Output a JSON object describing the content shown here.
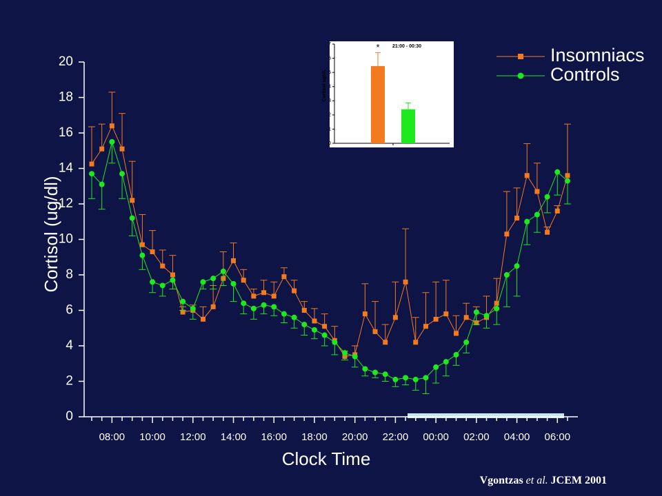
{
  "chart_data": [
    {
      "type": "line",
      "xlabel": "Clock Time",
      "ylabel": "Cortisol (ug/dl)",
      "categories": [
        null,
        null,
        "08:00",
        null,
        null,
        null,
        "10:00",
        null,
        null,
        null,
        "12:00",
        null,
        null,
        null,
        "14:00",
        null,
        null,
        null,
        "16:00",
        null,
        null,
        null,
        "18:00",
        null,
        null,
        null,
        "20:00",
        null,
        null,
        null,
        "22:00",
        null,
        null,
        null,
        "00:00",
        null,
        null,
        null,
        "02:00",
        null,
        null,
        null,
        "04:00",
        null,
        null,
        null,
        "06:00",
        null
      ],
      "ylim": [
        0,
        20
      ],
      "yticks": [
        0,
        2,
        4,
        6,
        8,
        10,
        12,
        14,
        16,
        18,
        20
      ],
      "legend": "upper right",
      "series": [
        {
          "name": "Insomniacs",
          "color": "#f47a20",
          "marker": "square",
          "error_direction": "up",
          "values": [
            14.25,
            15.1,
            16.4,
            15.1,
            12.2,
            9.7,
            9.3,
            8.5,
            8.0,
            5.9,
            6.0,
            5.5,
            6.2,
            7.8,
            8.8,
            7.7,
            6.8,
            7.0,
            6.8,
            7.9,
            7.1,
            6.0,
            5.4,
            5.1,
            4.3,
            3.4,
            3.5,
            5.8,
            4.8,
            4.2,
            5.6,
            7.6,
            4.2,
            5.1,
            5.5,
            5.8,
            4.7,
            5.6,
            5.3,
            5.6,
            6.4,
            10.3,
            11.2,
            13.6,
            12.7,
            10.4,
            11.6,
            13.6
          ],
          "errors": [
            2.1,
            1.4,
            1.9,
            2.0,
            2.2,
            1.7,
            1.2,
            0.9,
            1.1,
            0.3,
            0.3,
            0.7,
            1.2,
            1.5,
            1.0,
            0.6,
            0.4,
            0.7,
            0.8,
            0.5,
            0.6,
            0.5,
            0.7,
            0.7,
            0.8,
            0.3,
            0.5,
            1.7,
            1.7,
            1.0,
            2.0,
            3.0,
            1.4,
            1.9,
            2.1,
            1.9,
            1.0,
            0.8,
            0.9,
            1.2,
            1.4,
            2.4,
            1.7,
            1.8,
            1.6,
            0.3,
            0.3,
            2.9
          ]
        },
        {
          "name": "Controls",
          "color": "#1ee81e",
          "marker": "circle",
          "error_direction": "down",
          "values": [
            13.7,
            13.1,
            15.5,
            13.7,
            11.2,
            9.1,
            7.6,
            7.4,
            7.7,
            6.5,
            6.1,
            7.6,
            7.8,
            8.2,
            7.5,
            6.4,
            6.1,
            6.3,
            6.2,
            5.8,
            5.6,
            5.2,
            4.9,
            4.6,
            4.2,
            3.6,
            3.4,
            2.7,
            2.5,
            2.4,
            2.1,
            2.2,
            2.1,
            2.2,
            2.8,
            3.1,
            3.5,
            4.2,
            5.9,
            5.7,
            6.1,
            8.0,
            8.5,
            11.0,
            11.4,
            12.4,
            13.8,
            13.3
          ],
          "errors": [
            1.4,
            1.4,
            1.2,
            1.4,
            1.0,
            0.8,
            0.6,
            0.6,
            0.5,
            0.5,
            0.6,
            0.4,
            0.6,
            0.8,
            1.0,
            0.6,
            0.6,
            0.5,
            0.5,
            0.5,
            0.6,
            0.6,
            0.5,
            0.6,
            0.7,
            0.4,
            0.6,
            0.4,
            0.3,
            0.4,
            0.4,
            0.4,
            0.6,
            0.9,
            0.9,
            0.8,
            0.6,
            0.6,
            0.7,
            0.7,
            0.9,
            1.8,
            1.7,
            1.3,
            1.0,
            0.9,
            1.3,
            1.3
          ]
        }
      ]
    },
    {
      "type": "bar",
      "title": "21:00 - 00:30",
      "ylabel": "Cortisol ug/dL",
      "categories": [
        null,
        null
      ],
      "values": [
        5.45,
        2.4
      ],
      "errors": [
        0.95,
        0.45
      ],
      "colors": [
        "#f47a20",
        "#1ee81e"
      ],
      "annotations": [
        "*",
        null
      ],
      "ylim": [
        0,
        7
      ],
      "yticks": [
        0,
        1,
        2,
        3,
        4,
        5,
        6,
        7
      ]
    }
  ],
  "citation": {
    "author": "Vgontzas",
    "etal": "et al.",
    "source": "JCEM  2001"
  }
}
